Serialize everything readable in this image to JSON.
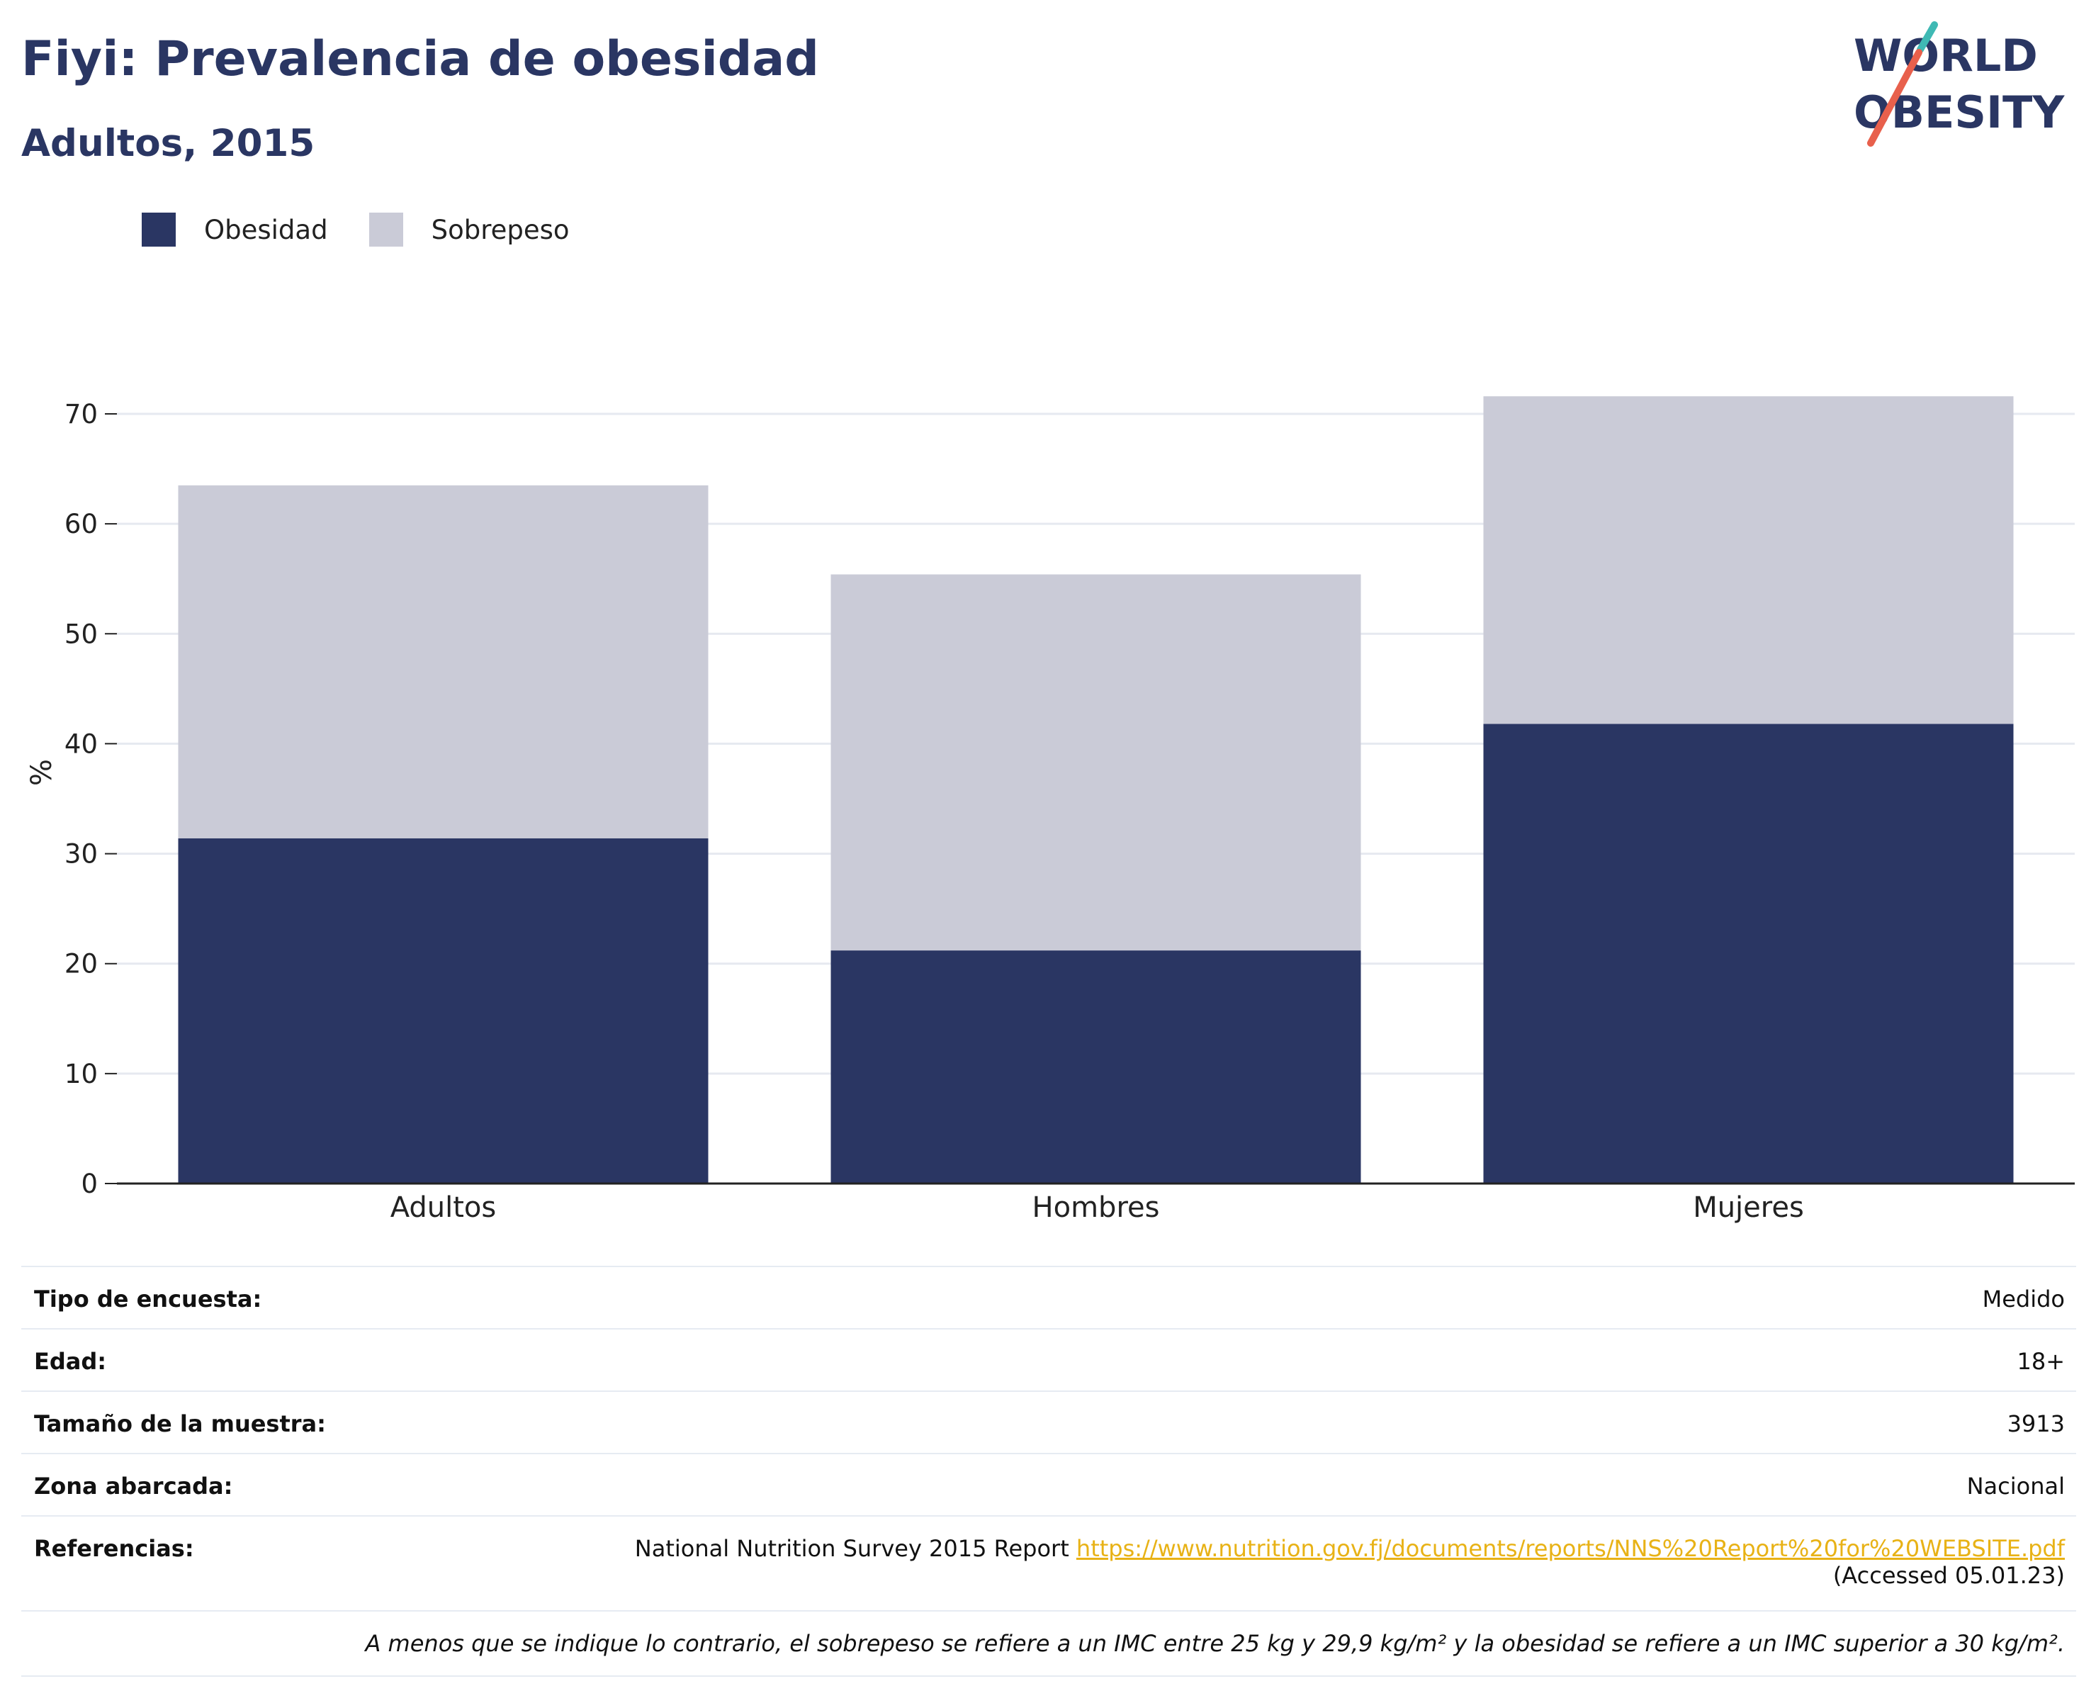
{
  "header": {
    "title": "Fiyi: Prevalencia de obesidad",
    "subtitle": "Adultos, 2015"
  },
  "logo": {
    "line1": "WORLD",
    "line2": "OBESITY",
    "colors": {
      "text": "#2a3663",
      "accent_teal": "#3fb9b4",
      "accent_red": "#e8604c"
    }
  },
  "colors": {
    "obesidad": "#2a3663",
    "sobrepeso": "#cacbd7",
    "gridline": "#e6e9f0",
    "axis": "#222222",
    "link": "#e8b216"
  },
  "chart_data": {
    "type": "bar",
    "stacked": true,
    "title": "Fiyi: Prevalencia de obesidad",
    "subtitle": "Adultos, 2015",
    "categories": [
      "Adultos",
      "Hombres",
      "Mujeres"
    ],
    "series": [
      {
        "name": "Obesidad",
        "values": [
          31.4,
          21.2,
          41.8
        ]
      },
      {
        "name": "Sobrepeso",
        "values": [
          32.1,
          34.2,
          29.8
        ]
      }
    ],
    "ylabel": "%",
    "ylim": [
      0,
      75
    ],
    "yticks": [
      0,
      10,
      20,
      30,
      40,
      50,
      60,
      70
    ],
    "grid": true,
    "legend_position": "top-left"
  },
  "info": {
    "rows": [
      {
        "label": "Tipo de encuesta:",
        "value": "Medido"
      },
      {
        "label": "Edad:",
        "value": "18+"
      },
      {
        "label": "Tamaño de la muestra:",
        "value": "3913"
      },
      {
        "label": "Zona abarcada:",
        "value": "Nacional"
      }
    ],
    "references": {
      "label": "Referencias:",
      "text": "National Nutrition Survey 2015 Report ",
      "link": "https://www.nutrition.gov.fj/documents/reports/NNS%20Report%20for%20WEBSITE.pdf",
      "accessed": "(Accessed 05.01.23)"
    },
    "footnote": "A menos que se indique lo contrario, el sobrepeso se refiere a un IMC entre 25 kg y 29,9 kg/m² y la obesidad se refiere a un IMC superior a 30 kg/m²."
  }
}
